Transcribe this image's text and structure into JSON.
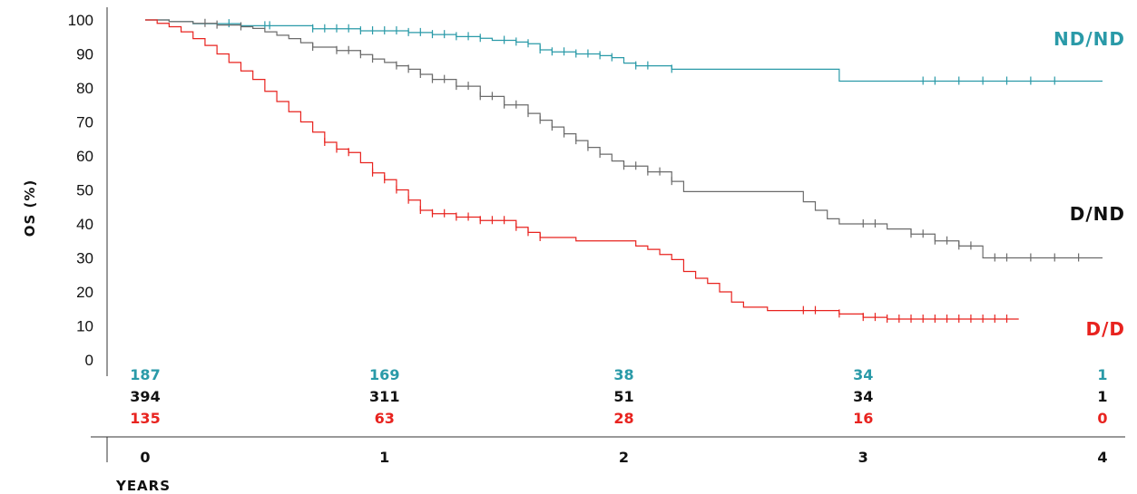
{
  "chart_data": {
    "type": "line",
    "subtype": "kaplan-meier",
    "ylabel": "OS (%)",
    "xlabel": "YEARS",
    "ylim": [
      0,
      100
    ],
    "xlim": [
      0,
      4
    ],
    "y_ticks": [
      "100",
      "90",
      "80",
      "70",
      "60",
      "50",
      "40",
      "30",
      "20",
      "10",
      "0"
    ],
    "x_ticks": [
      "0",
      "1",
      "2",
      "3",
      "4"
    ],
    "grid": false,
    "series": [
      {
        "name": "ND/ND",
        "color": "#2a9aa8",
        "points": [
          [
            0,
            100
          ],
          [
            0.1,
            99.5
          ],
          [
            0.2,
            98.9
          ],
          [
            0.4,
            98.3
          ],
          [
            0.7,
            97.4
          ],
          [
            0.9,
            96.8
          ],
          [
            1.0,
            96.8
          ],
          [
            1.1,
            96.3
          ],
          [
            1.2,
            95.7
          ],
          [
            1.3,
            95.1
          ],
          [
            1.4,
            94.6
          ],
          [
            1.45,
            94.0
          ],
          [
            1.5,
            94.0
          ],
          [
            1.55,
            93.5
          ],
          [
            1.6,
            93.0
          ],
          [
            1.65,
            91.2
          ],
          [
            1.7,
            90.6
          ],
          [
            1.8,
            90.0
          ],
          [
            1.9,
            89.5
          ],
          [
            1.95,
            88.9
          ],
          [
            2.0,
            87.3
          ],
          [
            2.05,
            86.5
          ],
          [
            2.15,
            86.5
          ],
          [
            2.2,
            85.5
          ],
          [
            2.4,
            85.5
          ],
          [
            2.6,
            85.5
          ],
          [
            2.8,
            85.5
          ],
          [
            2.9,
            82.0
          ],
          [
            3.0,
            82.0
          ],
          [
            3.5,
            82.0
          ],
          [
            4.0,
            82.0
          ]
        ],
        "censor_x": [
          0.35,
          0.5,
          0.52,
          0.7,
          0.75,
          0.8,
          0.85,
          0.9,
          0.95,
          1.0,
          1.05,
          1.1,
          1.15,
          1.2,
          1.25,
          1.3,
          1.35,
          1.4,
          1.5,
          1.55,
          1.6,
          1.65,
          1.7,
          1.75,
          1.8,
          1.85,
          1.9,
          1.95,
          2.05,
          2.1,
          2.2,
          3.25,
          3.3,
          3.4,
          3.5,
          3.6,
          3.7,
          3.8
        ]
      },
      {
        "name": "D/ND",
        "color": "#6b6b6b",
        "points": [
          [
            0,
            100
          ],
          [
            0.1,
            99.5
          ],
          [
            0.2,
            99.0
          ],
          [
            0.3,
            98.5
          ],
          [
            0.4,
            98.0
          ],
          [
            0.45,
            97.5
          ],
          [
            0.5,
            96.5
          ],
          [
            0.55,
            95.5
          ],
          [
            0.6,
            94.5
          ],
          [
            0.65,
            93.3
          ],
          [
            0.7,
            92.0
          ],
          [
            0.8,
            91.0
          ],
          [
            0.9,
            89.8
          ],
          [
            0.95,
            88.5
          ],
          [
            1.0,
            87.5
          ],
          [
            1.05,
            86.5
          ],
          [
            1.1,
            85.5
          ],
          [
            1.15,
            84.0
          ],
          [
            1.2,
            82.5
          ],
          [
            1.3,
            80.5
          ],
          [
            1.4,
            77.5
          ],
          [
            1.5,
            75.0
          ],
          [
            1.6,
            72.5
          ],
          [
            1.65,
            70.5
          ],
          [
            1.7,
            68.5
          ],
          [
            1.75,
            66.5
          ],
          [
            1.8,
            64.5
          ],
          [
            1.85,
            62.5
          ],
          [
            1.9,
            60.5
          ],
          [
            1.95,
            58.5
          ],
          [
            2.0,
            57.0
          ],
          [
            2.05,
            57.0
          ],
          [
            2.1,
            55.3
          ],
          [
            2.15,
            55.3
          ],
          [
            2.2,
            52.5
          ],
          [
            2.25,
            49.5
          ],
          [
            2.3,
            49.5
          ],
          [
            2.5,
            49.5
          ],
          [
            2.6,
            49.5
          ],
          [
            2.7,
            49.5
          ],
          [
            2.75,
            46.5
          ],
          [
            2.8,
            44.0
          ],
          [
            2.85,
            41.5
          ],
          [
            2.9,
            40.0
          ],
          [
            3.0,
            40.0
          ],
          [
            3.1,
            38.5
          ],
          [
            3.2,
            37.0
          ],
          [
            3.3,
            35.0
          ],
          [
            3.4,
            33.5
          ],
          [
            3.5,
            30.0
          ],
          [
            3.6,
            30.0
          ],
          [
            4.0,
            30.0
          ]
        ],
        "censor_x": [
          0.25,
          0.3,
          0.4,
          0.7,
          0.8,
          0.85,
          0.9,
          0.95,
          1.05,
          1.1,
          1.15,
          1.2,
          1.25,
          1.3,
          1.35,
          1.4,
          1.45,
          1.5,
          1.55,
          1.6,
          1.65,
          1.7,
          1.75,
          1.8,
          1.85,
          1.9,
          2.0,
          2.05,
          2.1,
          2.15,
          2.2,
          3.0,
          3.05,
          3.2,
          3.25,
          3.3,
          3.35,
          3.4,
          3.45,
          3.55,
          3.6,
          3.7,
          3.8,
          3.9
        ]
      },
      {
        "name": "D/D",
        "color": "#e8231f",
        "points": [
          [
            0,
            100
          ],
          [
            0.05,
            99.0
          ],
          [
            0.1,
            98.0
          ],
          [
            0.15,
            96.5
          ],
          [
            0.2,
            94.5
          ],
          [
            0.25,
            92.5
          ],
          [
            0.3,
            90.0
          ],
          [
            0.35,
            87.5
          ],
          [
            0.4,
            85.0
          ],
          [
            0.45,
            82.5
          ],
          [
            0.5,
            79.0
          ],
          [
            0.55,
            76.0
          ],
          [
            0.6,
            73.0
          ],
          [
            0.65,
            70.0
          ],
          [
            0.7,
            67.0
          ],
          [
            0.75,
            64.0
          ],
          [
            0.8,
            62.0
          ],
          [
            0.85,
            61.0
          ],
          [
            0.9,
            58.0
          ],
          [
            0.95,
            55.0
          ],
          [
            1.0,
            53.0
          ],
          [
            1.05,
            50.0
          ],
          [
            1.1,
            47.0
          ],
          [
            1.15,
            44.0
          ],
          [
            1.2,
            43.0
          ],
          [
            1.3,
            42.0
          ],
          [
            1.4,
            41.0
          ],
          [
            1.5,
            41.0
          ],
          [
            1.55,
            39.0
          ],
          [
            1.6,
            37.5
          ],
          [
            1.65,
            36.0
          ],
          [
            1.7,
            36.0
          ],
          [
            1.8,
            35.0
          ],
          [
            1.9,
            35.0
          ],
          [
            2.0,
            35.0
          ],
          [
            2.05,
            33.5
          ],
          [
            2.1,
            32.5
          ],
          [
            2.15,
            31.0
          ],
          [
            2.2,
            29.5
          ],
          [
            2.25,
            26.0
          ],
          [
            2.3,
            24.0
          ],
          [
            2.35,
            22.5
          ],
          [
            2.4,
            20.0
          ],
          [
            2.45,
            17.0
          ],
          [
            2.5,
            15.5
          ],
          [
            2.6,
            14.5
          ],
          [
            2.7,
            14.5
          ],
          [
            2.9,
            13.5
          ],
          [
            3.0,
            12.5
          ],
          [
            3.1,
            12.0
          ],
          [
            3.5,
            12.0
          ],
          [
            3.65,
            12.0
          ]
        ],
        "censor_x": [
          0.75,
          0.8,
          0.85,
          0.95,
          1.0,
          1.05,
          1.1,
          1.15,
          1.2,
          1.25,
          1.3,
          1.35,
          1.4,
          1.45,
          1.5,
          1.55,
          1.6,
          1.65,
          2.75,
          2.8,
          2.9,
          3.0,
          3.05,
          3.1,
          3.15,
          3.2,
          3.25,
          3.3,
          3.35,
          3.4,
          3.45,
          3.5,
          3.55,
          3.6
        ]
      }
    ],
    "numbers_at_risk": [
      {
        "series": "ND/ND",
        "color": "#2a9aa8",
        "values": [
          "187",
          "169",
          "38",
          "34",
          "1"
        ]
      },
      {
        "series": "D/ND",
        "color": "#111111",
        "values": [
          "394",
          "311",
          "51",
          "34",
          "1"
        ]
      },
      {
        "series": "D/D",
        "color": "#e8231f",
        "values": [
          "135",
          "63",
          "28",
          "16",
          "0"
        ]
      }
    ],
    "colors": {
      "ND/ND": "#2a9aa8",
      "D/ND": "#111111",
      "D/D": "#e8231f",
      "axis": "#333333"
    }
  }
}
